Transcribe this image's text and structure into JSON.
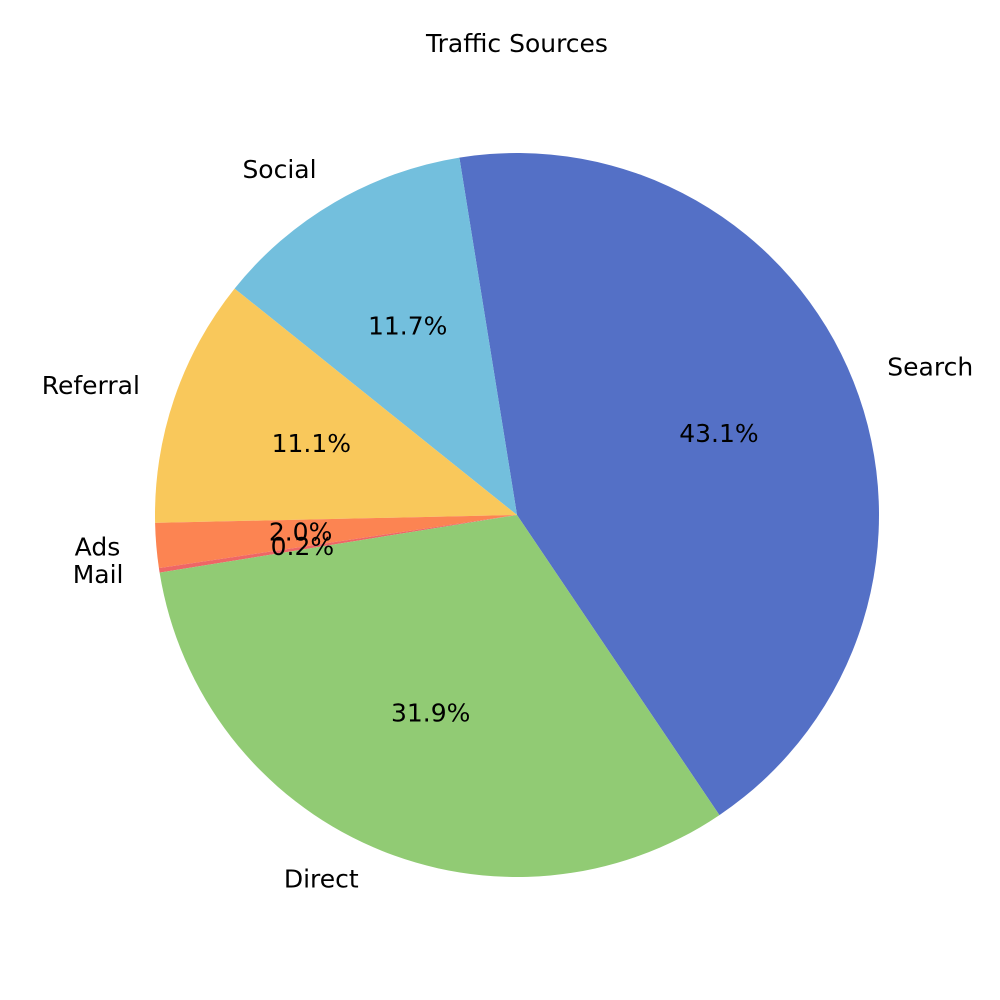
{
  "chart_data": {
    "type": "pie",
    "title": "Traffic Sources",
    "categories": [
      "Search",
      "Social",
      "Referral",
      "Ads",
      "Mail",
      "Direct"
    ],
    "values": [
      43.1,
      11.7,
      11.1,
      2.0,
      0.2,
      31.9
    ],
    "labels": [
      "43.1%",
      "11.7%",
      "11.1%",
      "2.0%",
      "0.2%",
      "31.9%"
    ],
    "colors": [
      "#5470c6",
      "#73bfdd",
      "#f9c85b",
      "#fc8452",
      "#ee6666",
      "#91cb74"
    ],
    "start_angle_deg": -56,
    "direction": "counterclockwise",
    "legend": "none"
  }
}
